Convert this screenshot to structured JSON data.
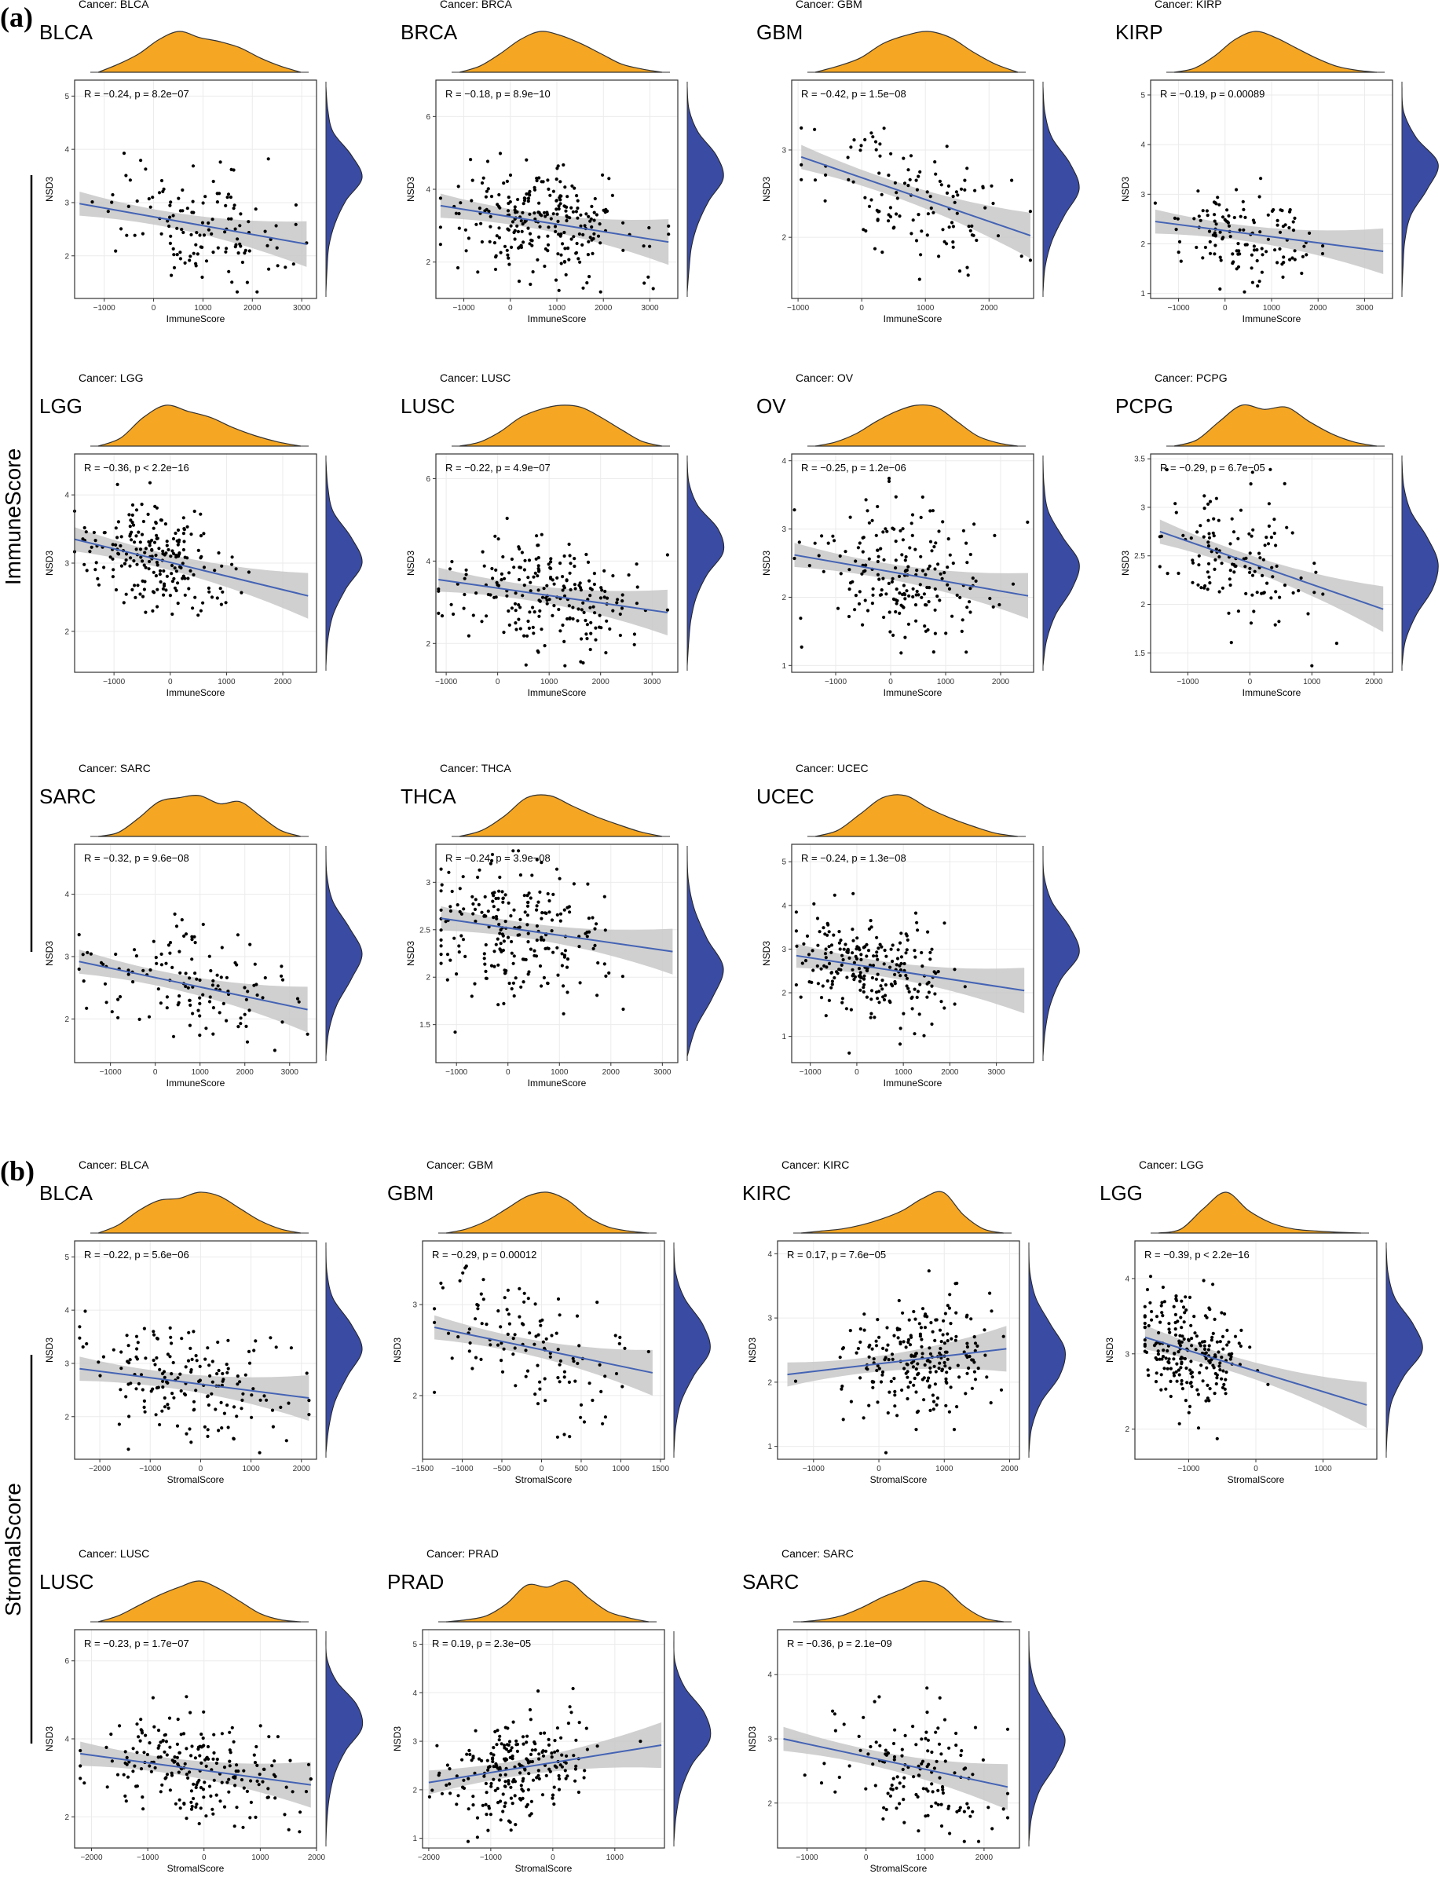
{
  "figure": {
    "panels": [
      {
        "label": "(a)",
        "side_label": "ImmuneScore"
      },
      {
        "label": "(b)",
        "side_label": "StromalScore"
      }
    ],
    "colors": {
      "density_top": "#F5A623",
      "density_right": "#3A4BA3",
      "points": "#000000",
      "regression": "#4463B4",
      "ci_band": "#C8C8C8",
      "grid": "#EBEBEB"
    }
  },
  "chart_data": [
    {
      "type": "scatter",
      "panel": "a",
      "title": "Cancer: BLCA",
      "cancer": "BLCA",
      "stat": "R = −0.24, p = 8.2e−07",
      "xlabel": "ImmuneScore",
      "ylabel": "NSD3",
      "xlim": [
        -1600,
        3300
      ],
      "ylim": [
        1.2,
        5.3
      ],
      "xticks": [
        -1000,
        0,
        1000,
        2000,
        3000
      ],
      "yticks": [
        2,
        3,
        4,
        5
      ],
      "fit": [
        [
          -1500,
          2.98
        ],
        [
          3100,
          2.22
        ]
      ],
      "n_points": 130,
      "x_center": 800,
      "x_spread": 900,
      "y_center": 2.6,
      "y_spread": 0.55,
      "top_density": [
        0.2,
        0.45,
        0.8,
        1.0,
        0.85,
        0.75,
        0.6,
        0.35,
        0.15
      ],
      "right_density": [
        0.05,
        0.2,
        0.7,
        1.0,
        0.55,
        0.25,
        0.08,
        0.03
      ]
    },
    {
      "type": "scatter",
      "panel": "a",
      "title": "Cancer: BRCA",
      "cancer": "BRCA",
      "stat": "R = −0.18, p = 8.9e−10",
      "xlabel": "ImmuneScore",
      "ylabel": "NSD3",
      "xlim": [
        -1600,
        3600
      ],
      "ylim": [
        1.0,
        7.0
      ],
      "xticks": [
        -1000,
        0,
        1000,
        2000,
        3000
      ],
      "yticks": [
        2,
        4,
        6
      ],
      "fit": [
        [
          -1500,
          3.55
        ],
        [
          3400,
          2.55
        ]
      ],
      "n_points": 260,
      "x_center": 700,
      "x_spread": 950,
      "y_center": 3.0,
      "y_spread": 0.75,
      "top_density": [
        0.15,
        0.45,
        0.8,
        1.0,
        0.9,
        0.7,
        0.45,
        0.2,
        0.08
      ],
      "right_density": [
        0.05,
        0.3,
        0.8,
        1.0,
        0.6,
        0.3,
        0.12,
        0.05
      ]
    },
    {
      "type": "scatter",
      "panel": "a",
      "title": "Cancer: GBM",
      "cancer": "GBM",
      "stat": "R = −0.42, p = 1.5e−08",
      "xlabel": "ImmuneScore",
      "ylabel": "NSD3",
      "xlim": [
        -1100,
        2700
      ],
      "ylim": [
        1.3,
        3.8
      ],
      "xticks": [
        -1000,
        0,
        1000,
        2000
      ],
      "yticks": [
        2,
        3
      ],
      "fit": [
        [
          -950,
          2.92
        ],
        [
          2650,
          2.02
        ]
      ],
      "n_points": 120,
      "x_center": 800,
      "x_spread": 750,
      "y_center": 2.5,
      "y_spread": 0.35,
      "top_density": [
        0.15,
        0.35,
        0.7,
        0.9,
        1.0,
        0.85,
        0.5,
        0.2
      ],
      "right_density": [
        0.05,
        0.25,
        0.75,
        1.0,
        0.6,
        0.25,
        0.06
      ]
    },
    {
      "type": "scatter",
      "panel": "a",
      "title": "Cancer: KIRP",
      "cancer": "KIRP",
      "stat": "R = −0.19, p = 0.00089",
      "xlabel": "ImmuneScore",
      "ylabel": "NSD3",
      "xlim": [
        -1600,
        3600
      ],
      "ylim": [
        0.9,
        5.3
      ],
      "xticks": [
        -1000,
        0,
        1000,
        2000,
        3000
      ],
      "yticks": [
        1,
        2,
        3,
        4,
        5
      ],
      "fit": [
        [
          -1500,
          2.45
        ],
        [
          3400,
          1.85
        ]
      ],
      "n_points": 130,
      "x_center": 500,
      "x_spread": 800,
      "y_center": 2.1,
      "y_spread": 0.45,
      "top_density": [
        0.1,
        0.4,
        0.8,
        1.0,
        0.85,
        0.6,
        0.35,
        0.15,
        0.05
      ],
      "right_density": [
        0.05,
        0.4,
        1.0,
        0.7,
        0.25,
        0.08,
        0.03
      ]
    },
    {
      "type": "scatter",
      "panel": "a",
      "title": "Cancer: LGG",
      "cancer": "LGG",
      "stat": "R = −0.36, p < 2.2e−16",
      "xlabel": "ImmuneScore",
      "ylabel": "NSD3",
      "xlim": [
        -1700,
        2600
      ],
      "ylim": [
        1.4,
        4.6
      ],
      "xticks": [
        -1000,
        0,
        1000,
        2000
      ],
      "yticks": [
        2,
        3,
        4
      ],
      "fit": [
        [
          -1700,
          3.35
        ],
        [
          2450,
          2.52
        ]
      ],
      "n_points": 220,
      "x_center": -300,
      "x_spread": 650,
      "y_center": 3.0,
      "y_spread": 0.38,
      "top_density": [
        0.2,
        0.7,
        1.0,
        0.85,
        0.7,
        0.45,
        0.25,
        0.1
      ],
      "right_density": [
        0.05,
        0.2,
        0.7,
        1.0,
        0.55,
        0.2,
        0.05
      ]
    },
    {
      "type": "scatter",
      "panel": "a",
      "title": "Cancer: LUSC",
      "cancer": "LUSC",
      "stat": "R = −0.22, p = 4.9e−07",
      "xlabel": "ImmuneScore",
      "ylabel": "NSD3",
      "xlim": [
        -1200,
        3500
      ],
      "ylim": [
        1.3,
        6.6
      ],
      "xticks": [
        -1000,
        0,
        1000,
        2000,
        3000
      ],
      "yticks": [
        2,
        4,
        6
      ],
      "fit": [
        [
          -1150,
          3.55
        ],
        [
          3300,
          2.75
        ]
      ],
      "n_points": 220,
      "x_center": 1000,
      "x_spread": 900,
      "y_center": 3.1,
      "y_spread": 0.65,
      "top_density": [
        0.1,
        0.35,
        0.7,
        0.9,
        1.0,
        0.95,
        0.7,
        0.4,
        0.12
      ],
      "right_density": [
        0.05,
        0.3,
        0.85,
        1.0,
        0.55,
        0.25,
        0.1,
        0.04
      ]
    },
    {
      "type": "scatter",
      "panel": "a",
      "title": "Cancer: OV",
      "cancer": "OV",
      "stat": "R = −0.25, p = 1.2e−06",
      "xlabel": "ImmuneScore",
      "ylabel": "NSD3",
      "xlim": [
        -1800,
        2600
      ],
      "ylim": [
        0.9,
        4.1
      ],
      "xticks": [
        -1000,
        0,
        1000,
        2000
      ],
      "yticks": [
        1,
        2,
        3,
        4
      ],
      "fit": [
        [
          -1750,
          2.62
        ],
        [
          2500,
          2.02
        ]
      ],
      "n_points": 200,
      "x_center": 300,
      "x_spread": 800,
      "y_center": 2.35,
      "y_spread": 0.5,
      "top_density": [
        0.1,
        0.3,
        0.6,
        0.85,
        1.0,
        0.95,
        0.6,
        0.25,
        0.08
      ],
      "right_density": [
        0.03,
        0.15,
        0.55,
        1.0,
        0.8,
        0.35,
        0.1
      ]
    },
    {
      "type": "scatter",
      "panel": "a",
      "title": "Cancer: PCPG",
      "cancer": "PCPG",
      "stat": "R = −0.29, p = 6.7e−05",
      "xlabel": "ImmuneScore",
      "ylabel": "NSD3",
      "xlim": [
        -1600,
        2300
      ],
      "ylim": [
        1.3,
        3.55
      ],
      "xticks": [
        -1000,
        0,
        1000,
        2000
      ],
      "yticks": [
        1.5,
        2.0,
        2.5,
        3.0,
        3.5
      ],
      "fit": [
        [
          -1450,
          2.75
        ],
        [
          2150,
          1.95
        ]
      ],
      "n_points": 130,
      "x_center": -200,
      "x_spread": 600,
      "y_center": 2.5,
      "y_spread": 0.35,
      "top_density": [
        0.15,
        0.6,
        1.0,
        0.9,
        0.95,
        0.6,
        0.3,
        0.1
      ],
      "right_density": [
        0.05,
        0.25,
        0.7,
        1.0,
        0.85,
        0.4,
        0.1
      ]
    },
    {
      "type": "scatter",
      "panel": "a",
      "title": "Cancer: SARC",
      "cancer": "SARC",
      "stat": "R = −0.32, p = 9.6e−08",
      "xlabel": "ImmuneScore",
      "ylabel": "NSD3",
      "xlim": [
        -1800,
        3600
      ],
      "ylim": [
        1.3,
        4.8
      ],
      "xticks": [
        -1000,
        0,
        1000,
        2000,
        3000
      ],
      "yticks": [
        2,
        3,
        4
      ],
      "fit": [
        [
          -1700,
          2.92
        ],
        [
          3400,
          2.15
        ]
      ],
      "n_points": 130,
      "x_center": 800,
      "x_spread": 1100,
      "y_center": 2.55,
      "y_spread": 0.45,
      "top_density": [
        0.1,
        0.45,
        0.85,
        0.95,
        1.0,
        0.8,
        0.85,
        0.5,
        0.15
      ],
      "right_density": [
        0.03,
        0.2,
        0.65,
        1.0,
        0.7,
        0.3,
        0.08
      ]
    },
    {
      "type": "scatter",
      "panel": "a",
      "title": "Cancer: THCA",
      "cancer": "THCA",
      "stat": "R = −0.24, p = 3.9e−08",
      "xlabel": "ImmuneScore",
      "ylabel": "NSD3",
      "xlim": [
        -1400,
        3300
      ],
      "ylim": [
        1.1,
        3.4
      ],
      "xticks": [
        -1000,
        0,
        1000,
        2000,
        3000
      ],
      "yticks": [
        1.5,
        2.0,
        2.5,
        3.0
      ],
      "fit": [
        [
          -1300,
          2.62
        ],
        [
          3200,
          2.27
        ]
      ],
      "n_points": 230,
      "x_center": 200,
      "x_spread": 900,
      "y_center": 2.5,
      "y_spread": 0.35,
      "top_density": [
        0.15,
        0.5,
        0.95,
        1.0,
        0.75,
        0.5,
        0.3,
        0.12
      ],
      "right_density": [
        0.03,
        0.2,
        0.55,
        1.0,
        0.7,
        0.25
      ]
    },
    {
      "type": "scatter",
      "panel": "a",
      "title": "Cancer: UCEC",
      "cancer": "UCEC",
      "stat": "R = −0.24, p = 1.3e−08",
      "xlabel": "ImmuneScore",
      "ylabel": "NSD3",
      "xlim": [
        -1400,
        3800
      ],
      "ylim": [
        0.4,
        5.4
      ],
      "xticks": [
        -1000,
        0,
        1000,
        2000,
        3000
      ],
      "yticks": [
        1,
        2,
        3,
        4,
        5
      ],
      "fit": [
        [
          -1300,
          2.85
        ],
        [
          3600,
          2.05
        ]
      ],
      "n_points": 230,
      "x_center": 300,
      "x_spread": 800,
      "y_center": 2.6,
      "y_spread": 0.55,
      "top_density": [
        0.15,
        0.55,
        0.95,
        1.0,
        0.7,
        0.45,
        0.25,
        0.08
      ],
      "right_density": [
        0.03,
        0.25,
        0.75,
        1.0,
        0.5,
        0.2,
        0.06
      ]
    },
    {
      "type": "scatter",
      "panel": "b",
      "title": "Cancer: BLCA",
      "cancer": "BLCA",
      "stat": "R = −0.22, p = 5.6e−06",
      "xlabel": "StromalScore",
      "ylabel": "NSD3",
      "xlim": [
        -2500,
        2300
      ],
      "ylim": [
        1.2,
        5.3
      ],
      "xticks": [
        -2000,
        -1000,
        0,
        1000,
        2000
      ],
      "yticks": [
        2,
        3,
        4,
        5
      ],
      "fit": [
        [
          -2400,
          2.9
        ],
        [
          2150,
          2.35
        ]
      ],
      "n_points": 170,
      "x_center": -400,
      "x_spread": 1000,
      "y_center": 2.6,
      "y_spread": 0.55,
      "top_density": [
        0.2,
        0.55,
        0.8,
        0.85,
        1.0,
        0.9,
        0.6,
        0.3,
        0.1
      ],
      "right_density": [
        0.03,
        0.2,
        0.7,
        1.0,
        0.6,
        0.25,
        0.08
      ]
    },
    {
      "type": "scatter",
      "panel": "b",
      "title": "Cancer: GBM",
      "cancer": "GBM",
      "stat": "R = −0.29, p = 0.00012",
      "xlabel": "StromalScore",
      "ylabel": "NSD3",
      "xlim": [
        -1500,
        1550
      ],
      "ylim": [
        1.3,
        3.7
      ],
      "xticks": [
        -1500,
        -1000,
        -500,
        0,
        500,
        1000,
        1500
      ],
      "yticks": [
        2,
        3
      ],
      "fit": [
        [
          -1350,
          2.75
        ],
        [
          1400,
          2.25
        ]
      ],
      "n_points": 120,
      "x_center": -100,
      "x_spread": 600,
      "y_center": 2.45,
      "y_spread": 0.35,
      "top_density": [
        0.1,
        0.3,
        0.6,
        0.9,
        1.0,
        0.8,
        0.4,
        0.15,
        0.05
      ],
      "right_density": [
        0.05,
        0.3,
        0.8,
        1.0,
        0.55,
        0.2,
        0.05
      ]
    },
    {
      "type": "scatter",
      "panel": "b",
      "title": "Cancer: KIRC",
      "cancer": "KIRC",
      "stat": "R = 0.17, p = 7.6e−05",
      "xlabel": "StromalScore",
      "ylabel": "NSD3",
      "xlim": [
        -1550,
        2150
      ],
      "ylim": [
        0.8,
        4.2
      ],
      "xticks": [
        -1000,
        0,
        1000,
        2000
      ],
      "yticks": [
        1,
        2,
        3,
        4
      ],
      "fit": [
        [
          -1400,
          2.12
        ],
        [
          1950,
          2.52
        ]
      ],
      "n_points": 230,
      "x_center": 600,
      "x_spread": 600,
      "y_center": 2.35,
      "y_spread": 0.45,
      "top_density": [
        0.05,
        0.1,
        0.2,
        0.35,
        0.55,
        0.85,
        1.0,
        0.45,
        0.1
      ],
      "right_density": [
        0.03,
        0.2,
        0.6,
        1.0,
        0.85,
        0.35,
        0.08
      ]
    },
    {
      "type": "scatter",
      "panel": "b",
      "title": "Cancer: LGG",
      "cancer": "LGG",
      "stat": "R = −0.39, p < 2.2e−16",
      "xlabel": "StromalScore",
      "ylabel": "NSD3",
      "xlim": [
        -1800,
        1800
      ],
      "ylim": [
        1.6,
        4.5
      ],
      "xticks": [
        -1000,
        0,
        1000
      ],
      "yticks": [
        2,
        3,
        4
      ],
      "fit": [
        [
          -1650,
          3.22
        ],
        [
          1650,
          2.32
        ]
      ],
      "n_points": 220,
      "x_center": -1000,
      "x_spread": 400,
      "y_center": 2.95,
      "y_spread": 0.35,
      "top_density": [
        0.1,
        0.6,
        1.0,
        0.55,
        0.25,
        0.1,
        0.05,
        0.02
      ],
      "right_density": [
        0.05,
        0.25,
        0.75,
        1.0,
        0.5,
        0.15,
        0.04
      ]
    },
    {
      "type": "scatter",
      "panel": "b",
      "title": "Cancer: LUSC",
      "cancer": "LUSC",
      "stat": "R = −0.23, p = 1.7e−07",
      "xlabel": "StromalScore",
      "ylabel": "NSD3",
      "xlim": [
        -2300,
        2000
      ],
      "ylim": [
        1.2,
        6.8
      ],
      "xticks": [
        -2000,
        -1000,
        0,
        1000,
        2000
      ],
      "yticks": [
        2,
        4,
        6
      ],
      "fit": [
        [
          -2200,
          3.62
        ],
        [
          1900,
          2.82
        ]
      ],
      "n_points": 220,
      "x_center": -100,
      "x_spread": 900,
      "y_center": 3.1,
      "y_spread": 0.65,
      "top_density": [
        0.15,
        0.4,
        0.65,
        0.85,
        1.0,
        0.8,
        0.5,
        0.2,
        0.05
      ],
      "right_density": [
        0.03,
        0.3,
        0.85,
        1.0,
        0.55,
        0.25,
        0.1,
        0.03
      ]
    },
    {
      "type": "scatter",
      "panel": "b",
      "title": "Cancer: PRAD",
      "cancer": "PRAD",
      "stat": "R = 0.19, p = 2.3e−05",
      "xlabel": "StromalScore",
      "ylabel": "NSD3",
      "xlim": [
        -2100,
        1800
      ],
      "ylim": [
        0.8,
        5.3
      ],
      "xticks": [
        -2000,
        -1000,
        0,
        1000
      ],
      "yticks": [
        1,
        2,
        3,
        4,
        5
      ],
      "fit": [
        [
          -2000,
          2.15
        ],
        [
          1750,
          2.92
        ]
      ],
      "n_points": 230,
      "x_center": -600,
      "x_spread": 550,
      "y_center": 2.4,
      "y_spread": 0.5,
      "top_density": [
        0.05,
        0.15,
        0.45,
        0.9,
        0.85,
        1.0,
        0.6,
        0.25,
        0.1
      ],
      "right_density": [
        0.03,
        0.3,
        0.85,
        1.0,
        0.5,
        0.2,
        0.06
      ]
    },
    {
      "type": "scatter",
      "panel": "b",
      "title": "Cancer: SARC",
      "cancer": "SARC",
      "stat": "R = −0.36, p = 2.1e−09",
      "xlabel": "StromalScore",
      "ylabel": "NSD3",
      "xlim": [
        -1500,
        2600
      ],
      "ylim": [
        1.3,
        4.7
      ],
      "xticks": [
        -1000,
        0,
        1000,
        2000
      ],
      "yticks": [
        2,
        3,
        4
      ],
      "fit": [
        [
          -1400,
          3.0
        ],
        [
          2400,
          2.25
        ]
      ],
      "n_points": 140,
      "x_center": 900,
      "x_spread": 700,
      "y_center": 2.55,
      "y_spread": 0.45,
      "top_density": [
        0.05,
        0.15,
        0.35,
        0.6,
        0.8,
        1.0,
        0.85,
        0.4,
        0.1
      ],
      "right_density": [
        0.03,
        0.2,
        0.6,
        1.0,
        0.75,
        0.3,
        0.08
      ]
    }
  ]
}
